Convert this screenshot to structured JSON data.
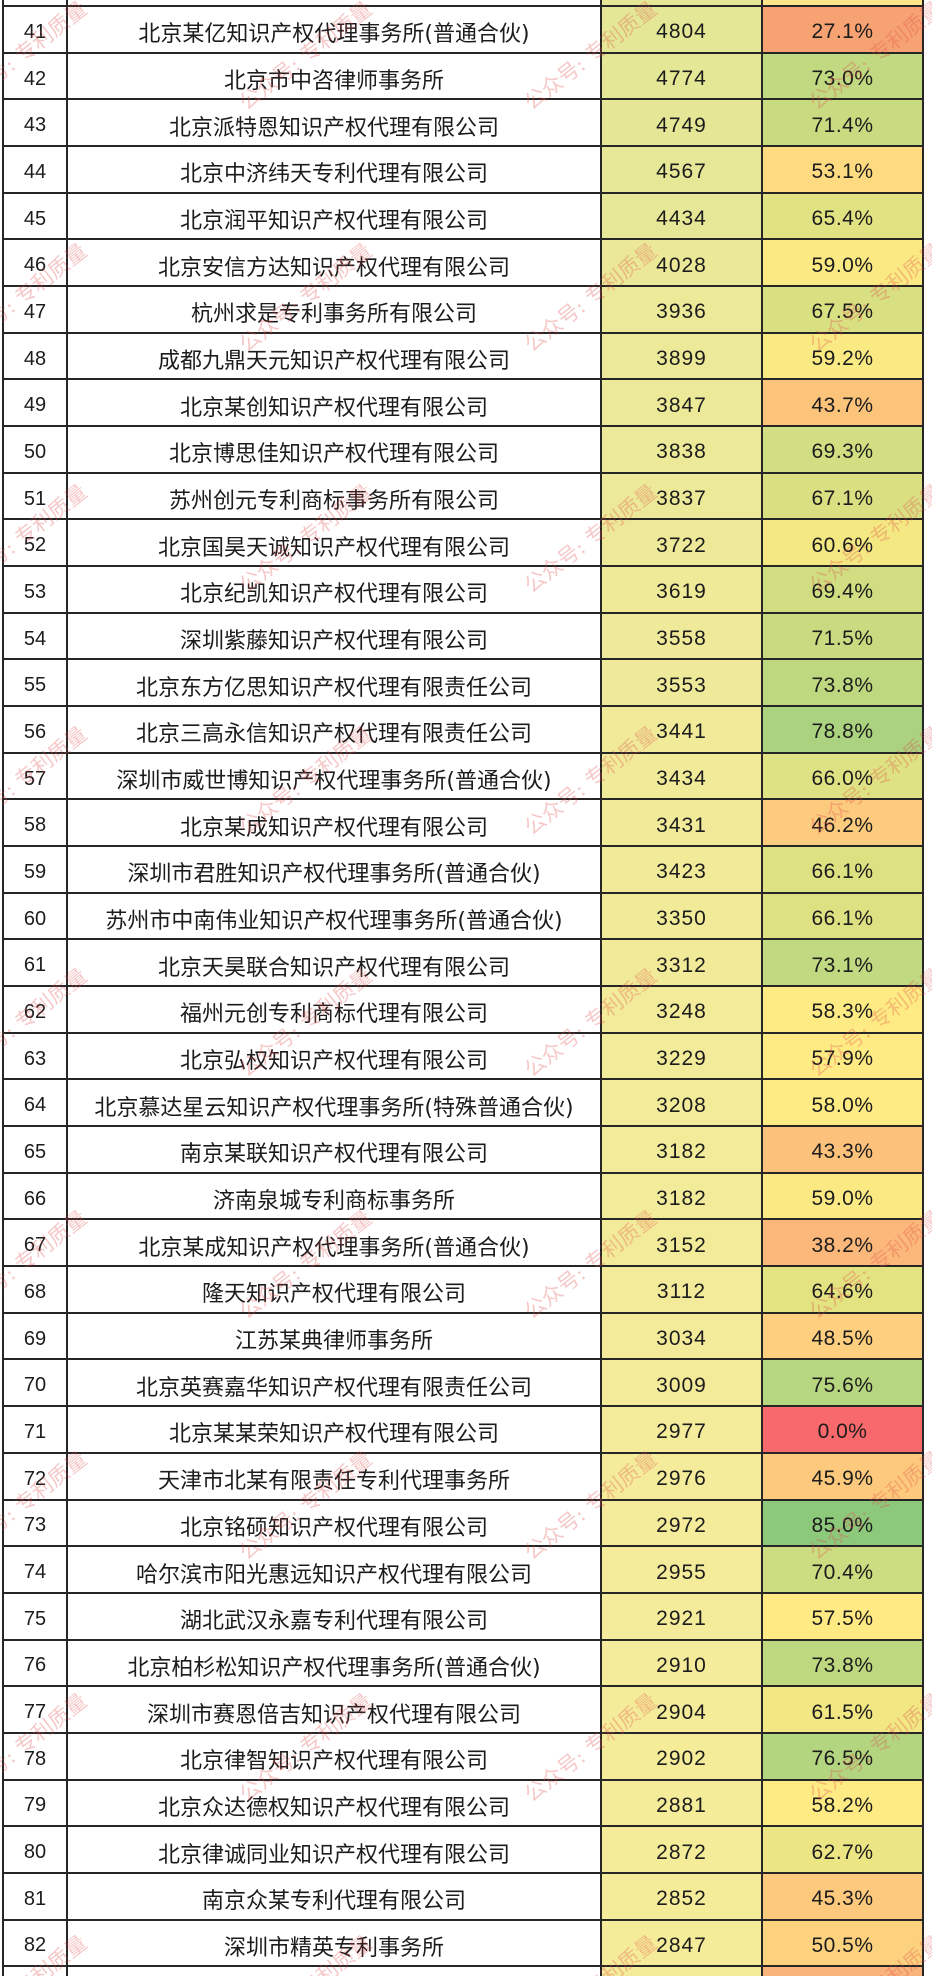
{
  "watermark": {
    "text": "公众号: 专利质量",
    "color": "#e04848"
  },
  "table": {
    "border_color": "#262626",
    "partial_top": {
      "count_bg": "#e4e796",
      "rate_bg": "#fde58a"
    },
    "rows": [
      {
        "rank": "41",
        "name": "北京某亿知识产权代理事务所(普通合伙)",
        "count": "4804",
        "rate": "27.1%",
        "count_bg": "#e4e796",
        "rate_bg": "#f6a272"
      },
      {
        "rank": "42",
        "name": "北京市中咨律师事务所",
        "count": "4774",
        "rate": "73.0%",
        "count_bg": "#e4e796",
        "rate_bg": "#c1d980"
      },
      {
        "rank": "43",
        "name": "北京派特恩知识产权代理有限公司",
        "count": "4749",
        "rate": "71.4%",
        "count_bg": "#e5e796",
        "rate_bg": "#c8db81"
      },
      {
        "rank": "44",
        "name": "北京中济纬天专利代理有限公司",
        "count": "4567",
        "rate": "53.1%",
        "count_bg": "#e6e797",
        "rate_bg": "#fedb81"
      },
      {
        "rank": "45",
        "name": "北京润平知识产权代理有限公司",
        "count": "4434",
        "rate": "65.4%",
        "count_bg": "#e7e897",
        "rate_bg": "#e1e282"
      },
      {
        "rank": "46",
        "name": "北京安信方达知识产权代理有限公司",
        "count": "4028",
        "rate": "59.0%",
        "count_bg": "#ebe998",
        "rate_bg": "#fbea84"
      },
      {
        "rank": "47",
        "name": "杭州求是专利事务所有限公司",
        "count": "3936",
        "rate": "67.5%",
        "count_bg": "#ece998",
        "rate_bg": "#d8e082"
      },
      {
        "rank": "48",
        "name": "成都九鼎天元知识产权代理有限公司",
        "count": "3899",
        "rate": "59.2%",
        "count_bg": "#ece998",
        "rate_bg": "#faea84"
      },
      {
        "rank": "49",
        "name": "北京某创知识产权代理有限公司",
        "count": "3847",
        "rate": "43.7%",
        "count_bg": "#ece998",
        "rate_bg": "#fcc37b"
      },
      {
        "rank": "50",
        "name": "北京博思佳知识产权代理有限公司",
        "count": "3838",
        "rate": "69.3%",
        "count_bg": "#ece998",
        "rate_bg": "#d1de81"
      },
      {
        "rank": "51",
        "name": "苏州创元专利商标事务所有限公司",
        "count": "3837",
        "rate": "67.1%",
        "count_bg": "#ece998",
        "rate_bg": "#dae082"
      },
      {
        "rank": "52",
        "name": "北京国昊天诚知识产权代理有限公司",
        "count": "3722",
        "rate": "60.6%",
        "count_bg": "#ede998",
        "rate_bg": "#f4e883"
      },
      {
        "rank": "53",
        "name": "北京纪凯知识产权代理有限公司",
        "count": "3619",
        "rate": "69.4%",
        "count_bg": "#eeea98",
        "rate_bg": "#d0de81"
      },
      {
        "rank": "54",
        "name": "深圳紫藤知识产权代理有限公司",
        "count": "3558",
        "rate": "71.5%",
        "count_bg": "#efea99",
        "rate_bg": "#c8db81"
      },
      {
        "rank": "55",
        "name": "北京东方亿思知识产权代理有限责任公司",
        "count": "3553",
        "rate": "73.8%",
        "count_bg": "#efea99",
        "rate_bg": "#bed880"
      },
      {
        "rank": "56",
        "name": "北京三高永信知识产权代理有限责任公司",
        "count": "3441",
        "rate": "78.8%",
        "count_bg": "#f0ea99",
        "rate_bg": "#aad27f"
      },
      {
        "rank": "57",
        "name": "深圳市威世博知识产权代理事务所(普通合伙)",
        "count": "3434",
        "rate": "66.0%",
        "count_bg": "#f0ea99",
        "rate_bg": "#dee282"
      },
      {
        "rank": "58",
        "name": "北京某成知识产权代理有限公司",
        "count": "3431",
        "rate": "46.2%",
        "count_bg": "#f0ea99",
        "rate_bg": "#fdcb7e"
      },
      {
        "rank": "59",
        "name": "深圳市君胜知识产权代理事务所(普通合伙)",
        "count": "3423",
        "rate": "66.1%",
        "count_bg": "#f0ea99",
        "rate_bg": "#dee182"
      },
      {
        "rank": "60",
        "name": "苏州市中南伟业知识产权代理事务所(普通合伙)",
        "count": "3350",
        "rate": "66.1%",
        "count_bg": "#f1eb99",
        "rate_bg": "#dee182"
      },
      {
        "rank": "61",
        "name": "北京天昊联合知识产权代理有限公司",
        "count": "3312",
        "rate": "73.1%",
        "count_bg": "#f1eb99",
        "rate_bg": "#c1d980"
      },
      {
        "rank": "62",
        "name": "福州元创专利商标代理有限公司",
        "count": "3248",
        "rate": "58.3%",
        "count_bg": "#f2eb99",
        "rate_bg": "#feeb84"
      },
      {
        "rank": "63",
        "name": "北京弘权知识产权代理有限公司",
        "count": "3229",
        "rate": "57.9%",
        "count_bg": "#f2eb99",
        "rate_bg": "#ffeb84"
      },
      {
        "rank": "64",
        "name": "北京慕达星云知识产权代理事务所(特殊普通合伙)",
        "count": "3208",
        "rate": "58.0%",
        "count_bg": "#f2eb99",
        "rate_bg": "#ffeb84"
      },
      {
        "rank": "65",
        "name": "南京某联知识产权代理有限公司",
        "count": "3182",
        "rate": "43.3%",
        "count_bg": "#f2eb99",
        "rate_bg": "#fcc27b"
      },
      {
        "rank": "66",
        "name": "济南泉城专利商标事务所",
        "count": "3182",
        "rate": "59.0%",
        "count_bg": "#f2eb99",
        "rate_bg": "#fbea84"
      },
      {
        "rank": "67",
        "name": "北京某成知识产权代理事务所(普通合伙)",
        "count": "3152",
        "rate": "38.2%",
        "count_bg": "#f2eb99",
        "rate_bg": "#fbb87a"
      },
      {
        "rank": "68",
        "name": "隆天知识产权代理有限公司",
        "count": "3112",
        "rate": "64.6%",
        "count_bg": "#f3eb99",
        "rate_bg": "#e4e382"
      },
      {
        "rank": "69",
        "name": "江苏某典律师事务所",
        "count": "3034",
        "rate": "48.5%",
        "count_bg": "#f3eb9a",
        "rate_bg": "#fdcf7e"
      },
      {
        "rank": "70",
        "name": "北京英赛嘉华知识产权代理有限责任公司",
        "count": "3009",
        "rate": "75.6%",
        "count_bg": "#f4eb9a",
        "rate_bg": "#b7d680"
      },
      {
        "rank": "71",
        "name": "北京某某荣知识产权代理有限公司",
        "count": "2977",
        "rate": "0.0%",
        "count_bg": "#f4ec9a",
        "rate_bg": "#f8696b"
      },
      {
        "rank": "72",
        "name": "天津市北某有限责任专利代理事务所",
        "count": "2976",
        "rate": "45.9%",
        "count_bg": "#f4ec9a",
        "rate_bg": "#fdca7d"
      },
      {
        "rank": "73",
        "name": "北京铭硕知识产权代理有限公司",
        "count": "2972",
        "rate": "85.0%",
        "count_bg": "#f4ec9a",
        "rate_bg": "#8dc97b"
      },
      {
        "rank": "74",
        "name": "哈尔滨市阳光惠远知识产权代理有限公司",
        "count": "2955",
        "rate": "70.4%",
        "count_bg": "#f4ec9a",
        "rate_bg": "#ccdc81"
      },
      {
        "rank": "75",
        "name": "湖北武汉永嘉专利代理有限公司",
        "count": "2921",
        "rate": "57.5%",
        "count_bg": "#f4ec9a",
        "rate_bg": "#ffea84"
      },
      {
        "rank": "76",
        "name": "北京柏杉松知识产权代理事务所(普通合伙)",
        "count": "2910",
        "rate": "73.8%",
        "count_bg": "#f4ec9a",
        "rate_bg": "#bed880"
      },
      {
        "rank": "77",
        "name": "深圳市赛恩倍吉知识产权代理有限公司",
        "count": "2904",
        "rate": "61.5%",
        "count_bg": "#f5ec9a",
        "rate_bg": "#f1e783"
      },
      {
        "rank": "78",
        "name": "北京律智知识产权代理有限公司",
        "count": "2902",
        "rate": "76.5%",
        "count_bg": "#f5ec9a",
        "rate_bg": "#b3d580"
      },
      {
        "rank": "79",
        "name": "北京众达德权知识产权代理有限公司",
        "count": "2881",
        "rate": "58.2%",
        "count_bg": "#f5ec9a",
        "rate_bg": "#feeb84"
      },
      {
        "rank": "80",
        "name": "北京律诚同业知识产权代理有限公司",
        "count": "2872",
        "rate": "62.7%",
        "count_bg": "#f5ec9a",
        "rate_bg": "#ece583"
      },
      {
        "rank": "81",
        "name": "南京众某专利代理有限公司",
        "count": "2852",
        "rate": "45.3%",
        "count_bg": "#f5ec9a",
        "rate_bg": "#fcc97d"
      },
      {
        "rank": "82",
        "name": "深圳市精英专利事务所",
        "count": "2847",
        "rate": "50.5%",
        "count_bg": "#f5ec9a",
        "rate_bg": "#fdd27f"
      }
    ],
    "partial_bottom": {
      "count_bg": "#f5ec9a",
      "rate_bg": "#f8b47a"
    }
  }
}
